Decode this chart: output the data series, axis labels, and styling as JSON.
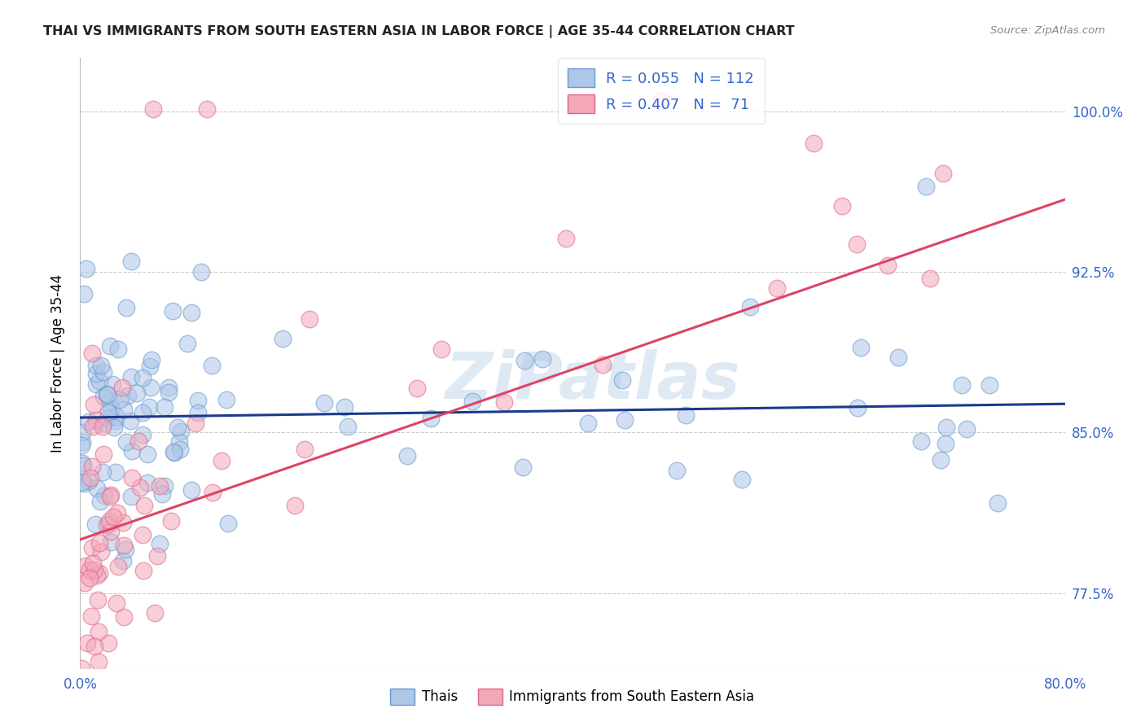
{
  "title": "THAI VS IMMIGRANTS FROM SOUTH EASTERN ASIA IN LABOR FORCE | AGE 35-44 CORRELATION CHART",
  "source": "Source: ZipAtlas.com",
  "ylabel": "In Labor Force | Age 35-44",
  "xlim": [
    0.0,
    0.8
  ],
  "ylim": [
    0.74,
    1.025
  ],
  "yticks": [
    0.775,
    0.85,
    0.925,
    1.0
  ],
  "ytick_labels": [
    "77.5%",
    "85.0%",
    "92.5%",
    "100.0%"
  ],
  "blue_R": 0.055,
  "blue_N": 112,
  "pink_R": 0.407,
  "pink_N": 71,
  "legend_label_blue": "Thais",
  "legend_label_pink": "Immigrants from South Eastern Asia",
  "blue_color": "#aec6e8",
  "pink_color": "#f4a7b9",
  "blue_edge": "#6699cc",
  "pink_edge": "#dd6688",
  "trend_blue": "#1a3a8c",
  "trend_pink": "#dd4466",
  "watermark": "ZiPatlas",
  "title_color": "#222222",
  "source_color": "#888888",
  "tick_color": "#3366cc",
  "grid_color": "#cccccc"
}
